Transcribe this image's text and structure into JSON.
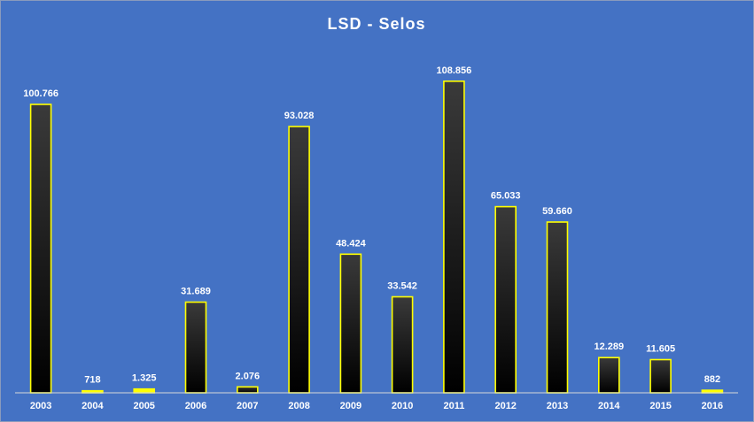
{
  "chart_data": {
    "type": "bar",
    "title": "LSD - Selos",
    "xlabel": "",
    "ylabel": "",
    "categories": [
      "2003",
      "2004",
      "2005",
      "2006",
      "2007",
      "2008",
      "2009",
      "2010",
      "2011",
      "2012",
      "2013",
      "2014",
      "2015",
      "2016"
    ],
    "values": [
      100766,
      718,
      1325,
      31689,
      2076,
      93028,
      48424,
      33542,
      108856,
      65033,
      59660,
      12289,
      11605,
      882
    ],
    "data_labels": [
      "100.766",
      "718",
      "1.325",
      "31.689",
      "2.076",
      "93.028",
      "48.424",
      "33.542",
      "108.856",
      "65.033",
      "59.660",
      "12.289",
      "11.605",
      "882"
    ],
    "ylim": [
      0,
      108856
    ],
    "grid": false,
    "legend": "none",
    "colors": {
      "background": "#4472c4",
      "bar_fill_top": "#3a3a3a",
      "bar_fill_bottom": "#000000",
      "bar_outline": "#ffff00",
      "axis_line": "#d9d9d9",
      "text": "#ffffff"
    }
  }
}
